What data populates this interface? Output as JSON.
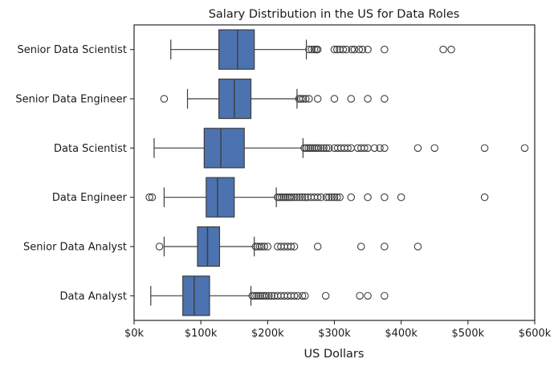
{
  "chart_data": {
    "type": "boxplot",
    "orientation": "horizontal",
    "title": "Salary Distribution in the US for Data Roles",
    "xlabel": "US Dollars",
    "ylabel": "",
    "xlim": [
      0,
      600000
    ],
    "xticks": [
      0,
      100000,
      200000,
      300000,
      400000,
      500000,
      600000
    ],
    "xtick_labels": [
      "$0k",
      "$100k",
      "$200k",
      "$300k",
      "$400k",
      "$500k",
      "$600k"
    ],
    "grid": false,
    "legend": "none",
    "box_color": "#4c72b0",
    "line_color": "#3d3d3d",
    "categories": [
      "Senior Data Scientist",
      "Senior Data Engineer",
      "Data Scientist",
      "Data Engineer",
      "Senior Data Analyst",
      "Data Analyst"
    ],
    "boxes": [
      {
        "label": "Senior Data Scientist",
        "whisker_low": 55000,
        "q1": 127000,
        "median": 155000,
        "q3": 180000,
        "whisker_high": 258000,
        "outliers": [
          262000,
          266000,
          270000,
          273000,
          275000,
          300000,
          304000,
          308000,
          313000,
          318000,
          326000,
          330000,
          337000,
          342000,
          350000,
          375000,
          463000,
          475000
        ]
      },
      {
        "label": "Senior Data Engineer",
        "whisker_low": 80000,
        "q1": 127000,
        "median": 150000,
        "q3": 175000,
        "whisker_high": 244000,
        "outliers": [
          45000,
          247000,
          250000,
          253000,
          257000,
          262000,
          275000,
          300000,
          325000,
          350000,
          375000
        ]
      },
      {
        "label": "Data Scientist",
        "whisker_low": 30000,
        "q1": 105000,
        "median": 130000,
        "q3": 165000,
        "whisker_high": 253000,
        "outliers": [
          255000,
          258000,
          261000,
          264000,
          267000,
          270000,
          273000,
          276000,
          280000,
          284000,
          288000,
          292000,
          300000,
          305000,
          310000,
          315000,
          320000,
          325000,
          335000,
          340000,
          345000,
          350000,
          360000,
          368000,
          375000,
          425000,
          450000,
          525000,
          585000
        ]
      },
      {
        "label": "Data Engineer",
        "whisker_low": 45000,
        "q1": 108000,
        "median": 125000,
        "q3": 150000,
        "whisker_high": 213000,
        "outliers": [
          23000,
          27000,
          215000,
          218000,
          221000,
          224000,
          227000,
          230000,
          233000,
          236000,
          240000,
          244000,
          248000,
          252000,
          256000,
          260000,
          265000,
          270000,
          275000,
          280000,
          288000,
          292000,
          296000,
          300000,
          304000,
          308000,
          325000,
          350000,
          375000,
          400000,
          525000
        ]
      },
      {
        "label": "Senior Data Analyst",
        "whisker_low": 45000,
        "q1": 95000,
        "median": 110000,
        "q3": 128000,
        "whisker_high": 180000,
        "outliers": [
          38000,
          182000,
          185000,
          188000,
          191000,
          195000,
          200000,
          215000,
          220000,
          225000,
          230000,
          235000,
          240000,
          275000,
          340000,
          375000,
          425000
        ]
      },
      {
        "label": "Data Analyst",
        "whisker_low": 25000,
        "q1": 73000,
        "median": 90000,
        "q3": 113000,
        "whisker_high": 175000,
        "outliers": [
          177000,
          180000,
          183000,
          186000,
          189000,
          192000,
          195000,
          198000,
          202000,
          206000,
          210000,
          215000,
          220000,
          225000,
          230000,
          235000,
          240000,
          245000,
          252000,
          256000,
          287000,
          338000,
          350000,
          375000
        ]
      }
    ]
  }
}
